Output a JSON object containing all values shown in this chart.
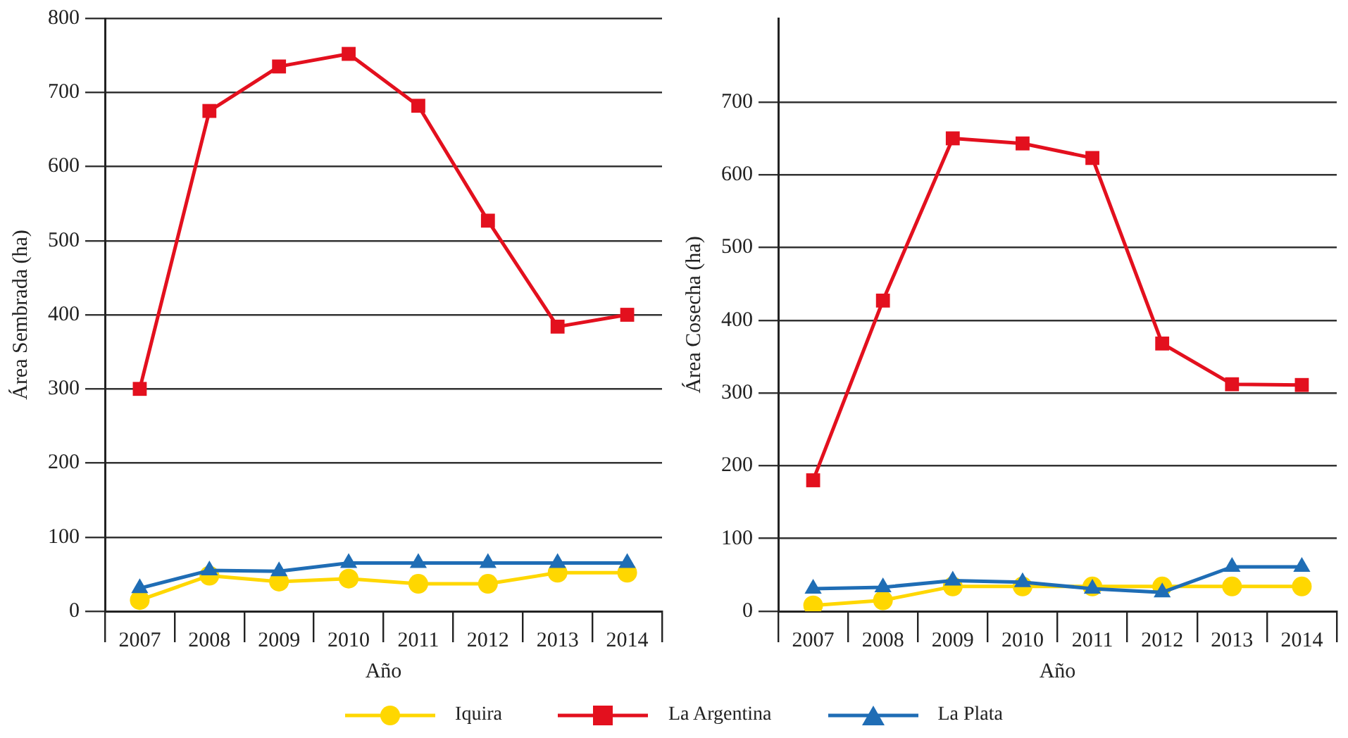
{
  "chart_data": [
    {
      "type": "line",
      "xlabel": "Año",
      "ylabel": "Área Sembrada (ha)",
      "categories": [
        "2007",
        "2008",
        "2009",
        "2010",
        "2011",
        "2012",
        "2013",
        "2014"
      ],
      "ylim": [
        0,
        800
      ],
      "yticks": [
        0,
        100,
        200,
        300,
        400,
        500,
        600,
        700,
        800
      ],
      "grid": "y",
      "legend": "bottom",
      "series": [
        {
          "name": "Iquira",
          "color": "#ffd700",
          "marker": "circle",
          "values": [
            15,
            48,
            40,
            44,
            37,
            37,
            52,
            52
          ]
        },
        {
          "name": "La Argentina",
          "color": "#e3101e",
          "marker": "square",
          "values": [
            300,
            675,
            735,
            752,
            682,
            527,
            384,
            400
          ]
        },
        {
          "name": "La Plata",
          "color": "#1f6db5",
          "marker": "triangle",
          "values": [
            31,
            55,
            54,
            65,
            65,
            65,
            65,
            65
          ]
        }
      ]
    },
    {
      "type": "line",
      "xlabel": "Año",
      "ylabel": "Área Cosecha (ha)",
      "categories": [
        "2007",
        "2008",
        "2009",
        "2010",
        "2011",
        "2012",
        "2013",
        "2014"
      ],
      "ylim": [
        0,
        815
      ],
      "yticks": [
        0,
        100,
        200,
        300,
        400,
        500,
        600,
        700
      ],
      "grid": "y",
      "legend": "bottom",
      "series": [
        {
          "name": "Iquira",
          "color": "#ffd700",
          "marker": "circle",
          "values": [
            8,
            15,
            34,
            34,
            34,
            34,
            34,
            34
          ]
        },
        {
          "name": "La Argentina",
          "color": "#e3101e",
          "marker": "square",
          "values": [
            180,
            427,
            650,
            643,
            623,
            368,
            312,
            311
          ]
        },
        {
          "name": "La Plata",
          "color": "#1f6db5",
          "marker": "triangle",
          "values": [
            31,
            33,
            42,
            40,
            31,
            26,
            61,
            61
          ]
        }
      ]
    }
  ]
}
